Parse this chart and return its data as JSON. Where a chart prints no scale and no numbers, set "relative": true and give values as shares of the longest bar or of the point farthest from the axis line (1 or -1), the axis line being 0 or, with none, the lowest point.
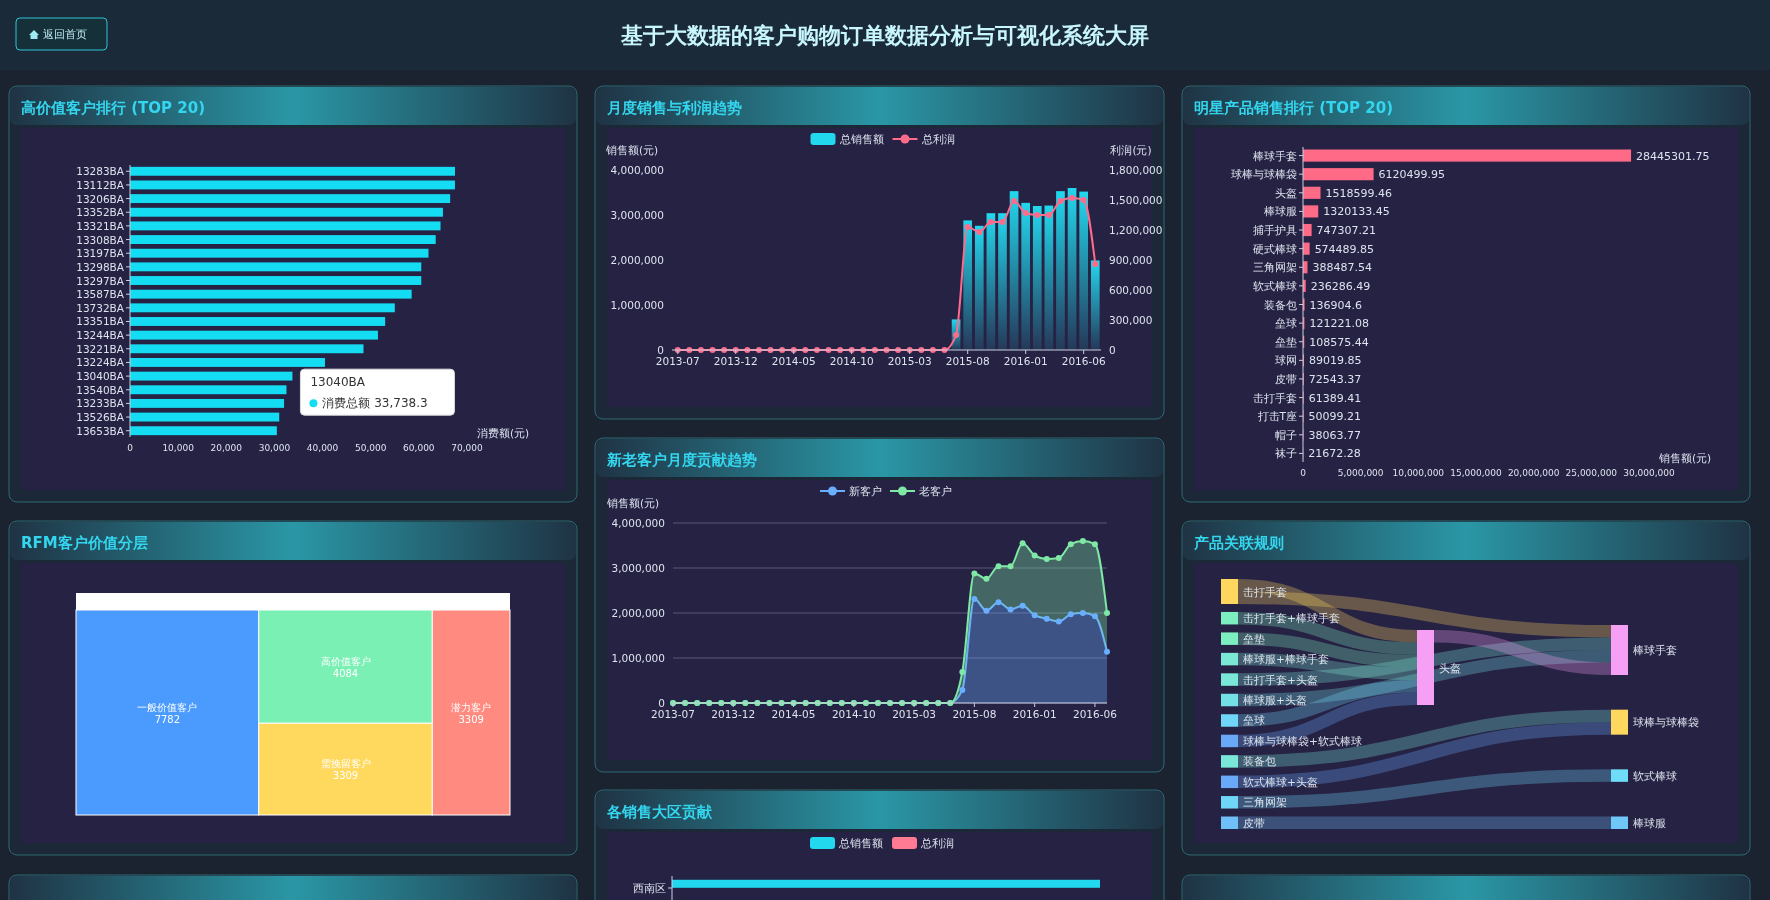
{
  "chart_data": [
    {
      "type": "other",
      "title": "基于大数据的客户购物订单数据分析与可视化系统大屏",
      "annotations": [
        "返回首页"
      ]
    },
    {
      "type": "bar",
      "orientation": "horizontal",
      "title": "高价值客户排行 (TOP 20)",
      "categories": [
        "13283BA",
        "13112BA",
        "13206BA",
        "13352BA",
        "13321BA",
        "13308BA",
        "13197BA",
        "13298BA",
        "13297BA",
        "13587BA",
        "13732BA",
        "13351BA",
        "13244BA",
        "13221BA",
        "13224BA",
        "13040BA",
        "13540BA",
        "13233BA",
        "13526BA",
        "13653BA"
      ],
      "values": [
        67500,
        67500,
        66500,
        65000,
        64500,
        63500,
        62000,
        60500,
        60500,
        58500,
        55000,
        53000,
        51500,
        48500,
        40500,
        33738.3,
        32500,
        32000,
        31000,
        30500
      ],
      "color": "#14dcf2",
      "xlim": [
        0,
        70000
      ],
      "xticks": [
        0,
        {
          "value": 10000,
          "label": "10,000"
        },
        {
          "value": 20000,
          "label": "20,000"
        },
        {
          "value": 30000,
          "label": "30,000"
        },
        {
          "value": 40000,
          "label": "40,000"
        },
        {
          "value": 50000,
          "label": "50,000"
        },
        {
          "value": 60000,
          "label": "60,000"
        },
        {
          "value": 70000,
          "label": "70,000"
        }
      ],
      "xlabel": "消费额(元)",
      "annotations": [
        {
          "text": "消费总额 33,738.3",
          "x": 33738.3,
          "y": "13040BA"
        }
      ]
    },
    {
      "type": "bar",
      "title": "月度销售与利润趋势",
      "categories": [
        "2013-07",
        null,
        null,
        null,
        null,
        "2013-12",
        null,
        null,
        null,
        null,
        "2014-05",
        null,
        null,
        null,
        null,
        "2014-10",
        null,
        null,
        null,
        null,
        "2015-03",
        null,
        null,
        null,
        null,
        "2015-08",
        null,
        null,
        null,
        null,
        "2016-01",
        null,
        null,
        null,
        null,
        "2016-06",
        null
      ],
      "series": [
        {
          "name": "总销售额",
          "type": "bar",
          "color": "#22d8ee",
          "values": [
            0,
            0,
            0,
            0,
            0,
            0,
            0,
            0,
            0,
            0,
            0,
            0,
            0,
            0,
            0,
            0,
            0,
            0,
            0,
            0,
            0,
            0,
            0,
            0,
            680000,
            2880000,
            2760000,
            3040000,
            3040000,
            3530000,
            3270000,
            3200000,
            3210000,
            3530000,
            3600000,
            3520000,
            1990000
          ]
        },
        {
          "name": "总利润",
          "type": "line",
          "axis": "y2",
          "color": "#ff6b8b",
          "values": [
            0,
            0,
            0,
            0,
            0,
            0,
            0,
            0,
            0,
            0,
            0,
            0,
            0,
            0,
            0,
            0,
            0,
            0,
            0,
            0,
            0,
            0,
            0,
            0,
            150000,
            1230000,
            1180000,
            1280000,
            1280000,
            1490000,
            1370000,
            1350000,
            1350000,
            1490000,
            1520000,
            1500000,
            860000
          ]
        }
      ],
      "ylim": [
        0,
        4000000
      ],
      "yticks": [
        0,
        {
          "value": 1000000,
          "label": "1,000,000"
        },
        {
          "value": 2000000,
          "label": "2,000,000"
        },
        {
          "value": 3000000,
          "label": "3,000,000"
        },
        {
          "value": 4000000,
          "label": "4,000,000"
        }
      ],
      "y2lim": [
        0,
        1800000
      ],
      "y2ticks": [
        0,
        {
          "value": 300000,
          "label": "300,000"
        },
        {
          "value": 600000,
          "label": "600,000"
        },
        {
          "value": 900000,
          "label": "900,000"
        },
        {
          "value": 1200000,
          "label": "1,200,000"
        },
        {
          "value": 1500000,
          "label": "1,500,000"
        },
        {
          "value": 1800000,
          "label": "1,800,000"
        }
      ],
      "ylabel": "销售额(元)",
      "y2label": "利润(元)",
      "legend": "top",
      "marker": "circle"
    },
    {
      "type": "bar",
      "orientation": "horizontal",
      "title": "明星产品销售排行 (TOP 20)",
      "categories": [
        "棒球手套",
        "球棒与球棒袋",
        "头盔",
        "棒球服",
        "捕手护具",
        "硬式棒球",
        "三角网架",
        "软式棒球",
        "装备包",
        "垒球",
        "垒垫",
        "球网",
        "皮带",
        "击打手套",
        "打击T座",
        "帽子",
        "袜子"
      ],
      "values": [
        28445301.75,
        6120499.95,
        1518599.46,
        1320133.45,
        747307.21,
        574489.85,
        388487.54,
        236286.49,
        136904.6,
        121221.08,
        108575.44,
        89019.85,
        72543.37,
        61389.41,
        50099.21,
        38063.77,
        21672.28
      ],
      "color": "#ff6b86",
      "data_labels": true,
      "xlim": [
        0,
        30000000
      ],
      "xticks": [
        0,
        {
          "value": 5000000,
          "label": "5,000,000"
        },
        {
          "value": 10000000,
          "label": "10,000,000"
        },
        {
          "value": 15000000,
          "label": "15,000,000"
        },
        {
          "value": 20000000,
          "label": "20,000,000"
        },
        {
          "value": 25000000,
          "label": "25,000,000"
        },
        {
          "value": 30000000,
          "label": "30,000,000"
        }
      ],
      "xlabel": "销售额(元)"
    },
    {
      "type": "other",
      "title": "RFM客户价值分层",
      "categories": [
        "一般价值客户",
        "高价值客户",
        "需挽留客户",
        "潜力客户"
      ],
      "values": [
        7782,
        4084,
        3309,
        3309
      ],
      "colors": [
        "#4b9bff",
        "#7af0b4",
        "#ffd95e",
        "#ff8b80"
      ],
      "data_labels": true
    },
    {
      "type": "area",
      "stacked": true,
      "title": "新老客户月度贡献趋势",
      "categories": [
        "2013-07",
        null,
        null,
        null,
        null,
        "2013-12",
        null,
        null,
        null,
        null,
        "2014-05",
        null,
        null,
        null,
        null,
        "2014-10",
        null,
        null,
        null,
        null,
        "2015-03",
        null,
        null,
        null,
        null,
        "2015-08",
        null,
        null,
        null,
        null,
        "2016-01",
        null,
        null,
        null,
        null,
        "2016-06",
        null
      ],
      "series": [
        {
          "name": "新客户",
          "color": "#6aaeff",
          "values": [
            0,
            0,
            0,
            0,
            0,
            0,
            0,
            0,
            0,
            0,
            0,
            0,
            0,
            0,
            0,
            0,
            0,
            0,
            0,
            0,
            0,
            0,
            0,
            0,
            290000,
            2310000,
            2050000,
            2240000,
            2080000,
            2160000,
            1950000,
            1870000,
            1810000,
            1970000,
            2000000,
            1930000,
            1140000
          ]
        },
        {
          "name": "老客户",
          "color": "#7ee8a4",
          "values": [
            0,
            0,
            0,
            0,
            0,
            0,
            0,
            0,
            0,
            0,
            0,
            0,
            0,
            0,
            0,
            0,
            0,
            0,
            0,
            0,
            0,
            0,
            0,
            0,
            400000,
            570000,
            710000,
            800000,
            960000,
            1390000,
            1330000,
            1330000,
            1410000,
            1560000,
            1600000,
            1600000,
            860000
          ]
        }
      ],
      "ylim": [
        0,
        4000000
      ],
      "yticks": [
        0,
        {
          "value": 1000000,
          "label": "1,000,000"
        },
        {
          "value": 2000000,
          "label": "2,000,000"
        },
        {
          "value": 3000000,
          "label": "3,000,000"
        },
        {
          "value": 4000000,
          "label": "4,000,000"
        }
      ],
      "ylabel": "销售额(元)",
      "grid": "y",
      "legend": "top",
      "marker": "circle"
    },
    {
      "type": "other",
      "title": "产品关联规则",
      "categories": [
        "击打手套",
        "击打手套+棒球手套",
        "垒垫",
        "棒球服+棒球手套",
        "击打手套+头盔",
        "棒球服+头盔",
        "垒球",
        "球棒与球棒袋+软式棒球",
        "装备包",
        "软式棒球+头盔",
        "三角网架",
        "皮带",
        "头盔",
        "棒球手套",
        "球棒与球棒袋",
        "软式棒球",
        "棒球服"
      ],
      "cells": [
        [
          null,
          null,
          null,
          null,
          null,
          null,
          null,
          null,
          null,
          null,
          null,
          null,
          true,
          true,
          null,
          null,
          null
        ],
        [
          null,
          null,
          null,
          null,
          null,
          null,
          null,
          null,
          null,
          null,
          null,
          null,
          true,
          null,
          null,
          null,
          null
        ],
        [
          null,
          null,
          null,
          null,
          null,
          null,
          null,
          null,
          null,
          null,
          null,
          null,
          true,
          null,
          null,
          null,
          null
        ],
        [
          null,
          null,
          null,
          null,
          null,
          null,
          null,
          null,
          null,
          null,
          null,
          null,
          true,
          null,
          null,
          null,
          null
        ],
        [
          null,
          null,
          null,
          null,
          null,
          null,
          null,
          null,
          null,
          null,
          null,
          null,
          null,
          true,
          null,
          null,
          null
        ],
        [
          null,
          null,
          null,
          null,
          null,
          null,
          null,
          null,
          null,
          null,
          null,
          null,
          null,
          true,
          null,
          null,
          null
        ],
        [
          null,
          null,
          null,
          null,
          null,
          null,
          null,
          null,
          null,
          null,
          null,
          null,
          true,
          null,
          null,
          null,
          null
        ],
        [
          null,
          null,
          null,
          null,
          null,
          null,
          null,
          null,
          null,
          null,
          null,
          null,
          true,
          null,
          null,
          null,
          null
        ],
        [
          null,
          null,
          null,
          null,
          null,
          null,
          null,
          null,
          null,
          null,
          null,
          null,
          null,
          null,
          true,
          null,
          null
        ],
        [
          null,
          null,
          null,
          null,
          null,
          null,
          null,
          null,
          null,
          null,
          null,
          null,
          null,
          null,
          true,
          null,
          null
        ],
        [
          null,
          null,
          null,
          null,
          null,
          null,
          null,
          null,
          null,
          null,
          null,
          null,
          null,
          null,
          null,
          true,
          null
        ],
        [
          null,
          null,
          null,
          null,
          null,
          null,
          null,
          null,
          null,
          null,
          null,
          null,
          null,
          null,
          null,
          null,
          true
        ],
        [
          null,
          null,
          null,
          null,
          null,
          null,
          null,
          null,
          null,
          null,
          null,
          null,
          null,
          true,
          null,
          null,
          null
        ],
        [
          null,
          null,
          null,
          null,
          null,
          null,
          null,
          null,
          null,
          null,
          null,
          null,
          null,
          null,
          null,
          null,
          null
        ],
        [
          null,
          null,
          null,
          null,
          null,
          null,
          null,
          null,
          null,
          null,
          null,
          null,
          null,
          null,
          null,
          null,
          null
        ],
        [
          null,
          null,
          null,
          null,
          null,
          null,
          null,
          null,
          null,
          null,
          null,
          null,
          null,
          null,
          null,
          null,
          null
        ],
        [
          null,
          null,
          null,
          null,
          null,
          null,
          null,
          null,
          null,
          null,
          null,
          null,
          null,
          null,
          null,
          null,
          null
        ]
      ],
      "colors": [
        "#ffd75e",
        "#7deec0",
        "#7deec0",
        "#7ae8d2",
        "#7ae8d8",
        "#74e0e6",
        "#6fd6f8",
        "#6aa8f8",
        "#7ae8d8",
        "#6aa8f8",
        "#6fd6f8",
        "#6fc0f8",
        "#f5a0f5",
        "#f5a0f5",
        "#ffd75e",
        "#6fdcf8",
        "#6fc8f8"
      ]
    },
    {
      "type": "bar",
      "orientation": "horizontal",
      "relative": true,
      "title": "各销售大区贡献",
      "categories": [
        "西南区"
      ],
      "series": [
        {
          "name": "总销售额",
          "color": "#22d8ee",
          "values": [
            1
          ]
        },
        {
          "name": "总利润",
          "color": "#ff7b93",
          "values": [
            null
          ]
        }
      ],
      "legend": "top"
    }
  ]
}
